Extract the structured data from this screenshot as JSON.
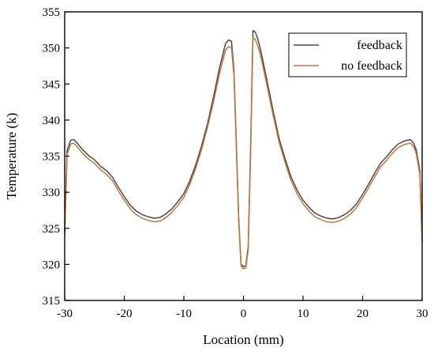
{
  "chart_data": {
    "type": "line",
    "title": "",
    "xlabel": "Location (mm)",
    "ylabel": "Temperature (k)",
    "xlim": [
      -30,
      30
    ],
    "ylim": [
      315,
      355
    ],
    "xticks": [
      -30,
      -20,
      -10,
      0,
      10,
      20,
      30
    ],
    "yticks": [
      315,
      320,
      325,
      330,
      335,
      340,
      345,
      350,
      355
    ],
    "grid": false,
    "legend_position": "top-right",
    "series": [
      {
        "name": "feedback",
        "color": "#4a4a4a",
        "x": [
          -30,
          -29.6,
          -29,
          -28.5,
          -28,
          -27,
          -26,
          -25,
          -24,
          -23,
          -22,
          -21,
          -20,
          -19,
          -18,
          -17,
          -16,
          -15,
          -14,
          -13,
          -12,
          -11,
          -10,
          -9,
          -8,
          -7,
          -6,
          -5,
          -4,
          -3,
          -2.5,
          -2,
          -1.6,
          -1.2,
          -0.8,
          -0.4,
          0,
          0.4,
          0.8,
          1.2,
          1.6,
          2,
          2.5,
          3,
          4,
          5,
          6,
          7,
          8,
          9,
          10,
          11,
          12,
          13,
          14,
          15,
          16,
          17,
          18,
          19,
          20,
          21,
          22,
          23,
          24,
          25,
          26,
          27,
          28,
          28.5,
          29,
          29.6,
          30
        ],
        "y": [
          324.5,
          335.8,
          337.2,
          337.3,
          336.9,
          335.9,
          335.1,
          334.5,
          333.6,
          333.0,
          332.1,
          330.7,
          329.4,
          328.2,
          327.4,
          326.9,
          326.6,
          326.4,
          326.5,
          327.0,
          327.7,
          328.7,
          329.8,
          331.6,
          333.8,
          336.5,
          339.6,
          343.3,
          347.3,
          350.6,
          351.1,
          350.9,
          347.0,
          337.0,
          326.5,
          320.0,
          319.7,
          319.8,
          322.5,
          336.0,
          352.4,
          352.2,
          351.0,
          349.3,
          345.3,
          341.2,
          337.4,
          334.6,
          332.1,
          330.3,
          328.9,
          327.9,
          327.1,
          326.7,
          326.4,
          326.3,
          326.5,
          326.9,
          327.5,
          328.4,
          329.7,
          331.1,
          332.6,
          334.0,
          334.9,
          335.9,
          336.7,
          337.1,
          337.3,
          336.9,
          335.9,
          333.0,
          323.5
        ]
      },
      {
        "name": "no feedback",
        "color": "#c0753f",
        "x": [
          -30,
          -29.6,
          -29,
          -28.5,
          -28,
          -27,
          -26,
          -25,
          -24,
          -23,
          -22,
          -21,
          -20,
          -19,
          -18,
          -17,
          -16,
          -15,
          -14,
          -13,
          -12,
          -11,
          -10,
          -9,
          -8,
          -7,
          -6,
          -5,
          -4,
          -3,
          -2.5,
          -2,
          -1.6,
          -1.2,
          -0.8,
          -0.4,
          0,
          0.4,
          0.8,
          1.2,
          1.6,
          2,
          2.5,
          3,
          4,
          5,
          6,
          7,
          8,
          9,
          10,
          11,
          12,
          13,
          14,
          15,
          16,
          17,
          18,
          19,
          20,
          21,
          22,
          23,
          24,
          25,
          26,
          27,
          28,
          28.5,
          29,
          29.6,
          30
        ],
        "y": [
          324.0,
          335.2,
          336.7,
          336.8,
          336.4,
          335.4,
          334.6,
          334.0,
          333.1,
          332.5,
          331.6,
          330.2,
          328.9,
          327.7,
          326.9,
          326.4,
          326.1,
          325.9,
          326.0,
          326.5,
          327.2,
          328.2,
          329.3,
          331.1,
          333.3,
          336.0,
          339.1,
          342.6,
          346.5,
          349.7,
          350.2,
          350.0,
          346.3,
          336.5,
          326.0,
          319.8,
          319.4,
          319.5,
          322.0,
          335.0,
          351.4,
          351.2,
          350.1,
          348.5,
          344.6,
          340.6,
          336.9,
          334.1,
          331.6,
          329.8,
          328.4,
          327.4,
          326.6,
          326.2,
          325.9,
          325.8,
          326.0,
          326.4,
          327.0,
          327.9,
          329.2,
          330.6,
          332.1,
          333.5,
          334.4,
          335.4,
          336.2,
          336.6,
          336.8,
          336.4,
          335.4,
          332.5,
          323.0
        ]
      }
    ]
  }
}
